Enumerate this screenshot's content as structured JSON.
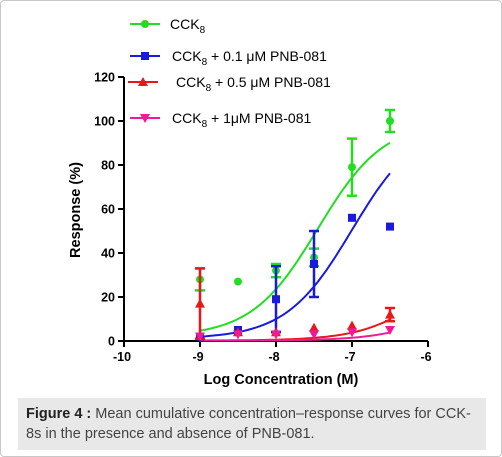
{
  "figure_caption": {
    "label": "Figure 4 :",
    "text": " Mean cumulative concentration–response curves for CCK-8s in the presence and absence of PNB-081."
  },
  "chart_data": {
    "type": "scatter",
    "title": "",
    "xlabel": "Log Concentration (M)",
    "ylabel": "Response (%)",
    "xlim": [
      -10,
      -6
    ],
    "ylim": [
      0,
      120
    ],
    "x_ticks": [
      "-10",
      "-9",
      "-8",
      "-7",
      "-6"
    ],
    "y_ticks": [
      "0",
      "20",
      "40",
      "60",
      "80",
      "100",
      "120"
    ],
    "legend_placement": "top",
    "series": [
      {
        "name": "CCK8",
        "legend": {
          "main": "CCK",
          "sub": "8",
          "rest": ""
        },
        "color": "#22dd22",
        "marker": "circle",
        "points": [
          {
            "x": -9,
            "y": 28,
            "err": 5
          },
          {
            "x": -8.5,
            "y": 27,
            "err": 0
          },
          {
            "x": -8,
            "y": 32,
            "err": 3
          },
          {
            "x": -7.5,
            "y": 38,
            "err": 4
          },
          {
            "x": -7,
            "y": 79,
            "err": 13
          },
          {
            "x": -6.5,
            "y": 100,
            "err": 5
          }
        ],
        "fit": {
          "bottom": 2,
          "top": 100,
          "logEC50": -7.45,
          "hill": 1.0
        }
      },
      {
        "name": "CCK8 + 0.1 μM PNB-081",
        "legend": {
          "main": "CCK",
          "sub": "8",
          "rest": " + 0.1 μM PNB-081"
        },
        "color": "#1a1adf",
        "marker": "square",
        "points": [
          {
            "x": -9,
            "y": 2,
            "err": 0
          },
          {
            "x": -8.5,
            "y": 5,
            "err": 0
          },
          {
            "x": -8,
            "y": 19,
            "err": 15
          },
          {
            "x": -7.5,
            "y": 35,
            "err": 15
          },
          {
            "x": -7,
            "y": 56,
            "err": 0
          },
          {
            "x": -6.5,
            "y": 52,
            "err": 0
          }
        ],
        "fit": {
          "bottom": 1,
          "top": 100,
          "logEC50": -7.0,
          "hill": 1.0
        }
      },
      {
        "name": "CCK8 + 0.5 μM PNB-081",
        "legend": {
          "main": "CCK",
          "sub": "8",
          "rest": " + 0.5 μM PNB-081"
        },
        "color": "#e81818",
        "marker": "triangle-up",
        "points": [
          {
            "x": -9,
            "y": 17,
            "err": 16
          },
          {
            "x": -8.5,
            "y": 4,
            "err": 0
          },
          {
            "x": -8,
            "y": 4,
            "err": 0
          },
          {
            "x": -7.5,
            "y": 6,
            "err": 0
          },
          {
            "x": -7,
            "y": 7,
            "err": 0
          },
          {
            "x": -6.5,
            "y": 12,
            "err": 3
          }
        ],
        "fit": {
          "bottom": 0.2,
          "top": 40,
          "logEC50": -6.0,
          "hill": 1.0
        }
      },
      {
        "name": "CCK8 + 1μM PNB-081",
        "legend": {
          "main": "CCK",
          "sub": "8",
          "rest": " + 1μM PNB-081"
        },
        "color": "#ee1a9a",
        "marker": "triangle-down",
        "points": [
          {
            "x": -9,
            "y": 2,
            "err": 0
          },
          {
            "x": -8.5,
            "y": 3,
            "err": 0
          },
          {
            "x": -8,
            "y": 3,
            "err": 0
          },
          {
            "x": -7.5,
            "y": 3,
            "err": 0
          },
          {
            "x": -7,
            "y": 4,
            "err": 0
          },
          {
            "x": -6.5,
            "y": 5,
            "err": 0
          }
        ],
        "fit": {
          "bottom": 0.2,
          "top": 30,
          "logEC50": -5.65,
          "hill": 1.0
        }
      }
    ]
  }
}
